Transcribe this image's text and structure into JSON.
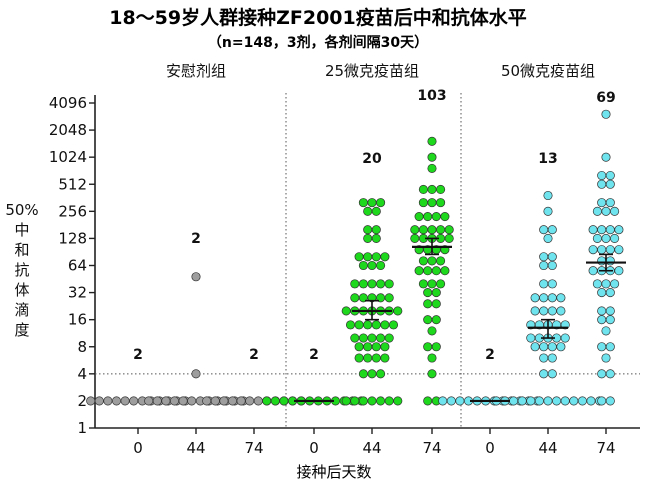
{
  "chart_data": {
    "type": "scatter",
    "title": "18～59岁人群接种ZF2001疫苗后中和抗体水平",
    "subtitle": "（n=148，3剂，各剂间隔30天）",
    "xlabel": "接种后天数",
    "ylabel_lines": [
      "50%",
      "中",
      "和",
      "抗",
      "体",
      "滴",
      "度"
    ],
    "yscale": "log2",
    "ylim": [
      1,
      4096
    ],
    "yticks": [
      "1",
      "2",
      "4",
      "8",
      "16",
      "32",
      "64",
      "128",
      "256",
      "512",
      "1024",
      "2048",
      "4096"
    ],
    "reference_line": {
      "y": 4,
      "style": "dotted"
    },
    "groups": [
      {
        "name": "安慰剂组",
        "color": "#9e9e9e",
        "timepoints": [
          {
            "day": "0",
            "gmt_label": "2",
            "values": [
              2,
              2,
              2,
              2,
              2,
              2,
              2,
              2,
              2,
              2,
              2,
              2
            ]
          },
          {
            "day": "44",
            "gmt_label": "2",
            "values": [
              2,
              2,
              2,
              2,
              2,
              2,
              2,
              2,
              2,
              2,
              2,
              2,
              4,
              48
            ]
          },
          {
            "day": "74",
            "gmt_label": "2",
            "values": [
              2,
              2,
              2,
              2,
              2,
              2,
              2,
              2,
              2,
              2,
              2,
              2
            ]
          }
        ]
      },
      {
        "name": "25微克疫苗组",
        "color": "#1ed81e",
        "timepoints": [
          {
            "day": "0",
            "gmt_label": "2",
            "values": [
              2,
              2,
              2,
              2,
              2,
              2,
              2,
              2,
              2,
              2,
              2,
              2
            ],
            "gmt": 2
          },
          {
            "day": "44",
            "gmt_label": "20",
            "gmt": 20,
            "ci": [
              16,
              26
            ],
            "values": [
              2,
              2,
              2,
              2,
              2,
              2,
              2,
              4,
              4,
              4,
              6,
              6,
              6,
              6,
              8,
              8,
              8,
              8,
              10,
              10,
              12,
              12,
              12,
              14,
              14,
              16,
              16,
              16,
              16,
              20,
              20,
              20,
              20,
              24,
              24,
              24,
              28,
              28,
              32,
              32,
              32,
              40,
              40,
              40,
              48,
              48,
              64,
              64,
              64,
              80,
              80,
              96,
              96,
              128,
              128,
              160,
              192,
              256,
              256,
              320,
              384,
              384
            ]
          },
          {
            "day": "74",
            "gmt_label": "103",
            "gmt": 103,
            "ci": [
              85,
              128
            ],
            "values": [
              2,
              2,
              4,
              6,
              8,
              8,
              12,
              16,
              16,
              24,
              28,
              32,
              32,
              40,
              48,
              48,
              56,
              64,
              64,
              64,
              72,
              80,
              80,
              96,
              96,
              96,
              112,
              128,
              128,
              128,
              128,
              144,
              160,
              160,
              192,
              192,
              192,
              224,
              256,
              256,
              256,
              320,
              384,
              384,
              448,
              512,
              512,
              768,
              1024,
              1536
            ]
          }
        ]
      },
      {
        "name": "50微克疫苗组",
        "color": "#6fe3ee",
        "timepoints": [
          {
            "day": "0",
            "gmt_label": "2",
            "values": [
              2,
              2,
              2,
              2,
              2,
              2,
              2,
              2,
              2,
              2,
              2,
              2
            ],
            "gmt": 2
          },
          {
            "day": "44",
            "gmt_label": "13",
            "gmt": 13,
            "ci": [
              10,
              16
            ],
            "values": [
              2,
              2,
              2,
              2,
              2,
              2,
              2,
              2,
              2,
              2,
              2,
              2,
              2,
              4,
              4,
              6,
              6,
              8,
              8,
              8,
              8,
              10,
              10,
              12,
              12,
              12,
              14,
              14,
              16,
              16,
              16,
              20,
              20,
              24,
              24,
              28,
              32,
              32,
              32,
              40,
              48,
              64,
              64,
              80,
              96,
              128,
              160,
              192,
              256,
              384
            ]
          },
          {
            "day": "74",
            "gmt_label": "69",
            "gmt": 69,
            "ci": [
              56,
              85
            ],
            "values": [
              2,
              2,
              4,
              4,
              6,
              8,
              8,
              12,
              16,
              16,
              20,
              24,
              32,
              32,
              40,
              48,
              48,
              56,
              64,
              64,
              64,
              72,
              80,
              96,
              96,
              96,
              112,
              128,
              128,
              128,
              160,
              160,
              192,
              192,
              256,
              256,
              256,
              320,
              384,
              512,
              512,
              640,
              768,
              1024,
              3072
            ]
          }
        ]
      }
    ]
  }
}
